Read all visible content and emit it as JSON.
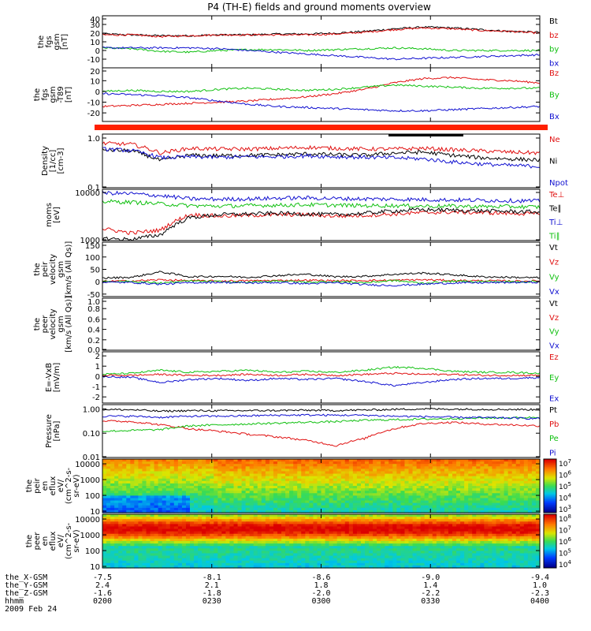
{
  "title": "P4 (TH-E) fields and ground moments overview",
  "colors": {
    "black": "#000000",
    "red": "#e01010",
    "green": "#10c010",
    "blue": "#1010d0",
    "flag_red": "#ff2000"
  },
  "time_axis": {
    "ticks": [
      "0200",
      "0230",
      "0300",
      "0330",
      "0400"
    ],
    "label_rows": [
      {
        "name": "the_X-GSM",
        "values": [
          "-7.5",
          "-8.1",
          "-8.6",
          "-9.0",
          "-9.4"
        ]
      },
      {
        "name": "the_Y-GSM",
        "values": [
          "2.4",
          "2.1",
          "1.8",
          "1.4",
          "1.0"
        ]
      },
      {
        "name": "the_Z-GSM",
        "values": [
          "-1.6",
          "-1.8",
          "-2.0",
          "-2.2",
          "-2.3"
        ]
      },
      {
        "name": "hhmm",
        "values": [
          "0200",
          "0230",
          "0300",
          "0330",
          "0400"
        ]
      }
    ],
    "date": "2009 Feb 24"
  },
  "chart_data": [
    {
      "type": "line",
      "id": "p1",
      "ylabel": [
        "the",
        "fgs",
        "gsm",
        "[nT]"
      ],
      "ylim": [
        -20,
        40
      ],
      "y_ticks": [
        "40",
        "30",
        "20",
        "10",
        "0",
        "-10"
      ],
      "series": [
        {
          "name": "Bt",
          "color": "#000000",
          "values": [
            19,
            18,
            17,
            17,
            18,
            18,
            19,
            19,
            20,
            22,
            25,
            27,
            26,
            24,
            22,
            21
          ]
        },
        {
          "name": "bz",
          "color": "#e01010",
          "values": [
            18,
            18,
            16,
            17,
            18,
            18,
            18,
            18,
            19,
            21,
            24,
            26,
            25,
            23,
            22,
            20
          ]
        },
        {
          "name": "by",
          "color": "#10c010",
          "values": [
            3,
            2,
            -1,
            -2,
            0,
            1,
            1,
            0,
            1,
            2,
            3,
            2,
            0,
            0,
            0,
            0
          ]
        },
        {
          "name": "bx",
          "color": "#1010d0",
          "values": [
            3,
            3,
            3,
            3,
            2,
            0,
            -2,
            -4,
            -6,
            -8,
            -10,
            -9,
            -8,
            -7,
            -6,
            -5
          ]
        }
      ]
    },
    {
      "type": "line",
      "id": "p2",
      "ylabel": [
        "the",
        "fgs",
        "gsm",
        "-T89",
        "[nT]"
      ],
      "ylim": [
        -28,
        22
      ],
      "y_ticks": [
        "20",
        "10",
        "0",
        "-10",
        "-20"
      ],
      "series": [
        {
          "name": "Bz",
          "color": "#e01010",
          "values": [
            -14,
            -13,
            -12,
            -11,
            -10,
            -9,
            -7,
            -5,
            -2,
            2,
            8,
            12,
            13,
            11,
            10,
            8
          ]
        },
        {
          "name": "By",
          "color": "#10c010",
          "values": [
            0,
            1,
            0,
            0,
            2,
            3,
            2,
            1,
            2,
            4,
            6,
            5,
            4,
            3,
            3,
            3
          ]
        },
        {
          "name": "Bx",
          "color": "#1010d0",
          "values": [
            -2,
            -3,
            -4,
            -6,
            -9,
            -12,
            -14,
            -15,
            -16,
            -17,
            -18,
            -18,
            -17,
            -16,
            -15,
            -14
          ]
        }
      ]
    },
    {
      "type": "line",
      "id": "p3",
      "ylabel": [
        "Density",
        "[1/cc]",
        "[cm-3]"
      ],
      "yscale": "log",
      "ylim": [
        0.1,
        1.2
      ],
      "y_ticks": [
        "1.0",
        "0.1"
      ],
      "series": [
        {
          "name": "Ne",
          "color": "#e01010",
          "values": [
            0.78,
            0.75,
            0.5,
            0.62,
            0.6,
            0.6,
            0.62,
            0.65,
            0.62,
            0.6,
            0.6,
            0.62,
            0.58,
            0.55,
            0.52,
            0.5
          ]
        },
        {
          "name": "Ni",
          "color": "#000000",
          "values": [
            0.58,
            0.55,
            0.35,
            0.45,
            0.44,
            0.45,
            0.46,
            0.48,
            0.46,
            0.45,
            0.5,
            0.52,
            0.45,
            0.4,
            0.38,
            0.36
          ]
        },
        {
          "name": "Npot",
          "color": "#1010d0",
          "values": [
            0.6,
            0.56,
            0.4,
            0.42,
            0.41,
            0.42,
            0.42,
            0.44,
            0.42,
            0.41,
            0.4,
            0.38,
            0.33,
            0.3,
            0.28,
            0.27
          ]
        }
      ]
    },
    {
      "type": "line",
      "id": "p4",
      "ylabel": [
        "moms",
        "[eV]"
      ],
      "yscale": "log",
      "ylim": [
        1000,
        10000
      ],
      "y_ticks": [
        "10000",
        "1000"
      ],
      "series": [
        {
          "name": "Te⊥",
          "color": "#e01010",
          "values": [
            1700,
            1400,
            1600,
            3200,
            3000,
            3100,
            3200,
            3200,
            3000,
            3100,
            3300,
            3500,
            3600,
            3500,
            3400,
            3300
          ]
        },
        {
          "name": "Te∥",
          "color": "#000000",
          "values": [
            1100,
            1050,
            1300,
            2800,
            3200,
            3300,
            3400,
            3300,
            3200,
            3400,
            3800,
            4000,
            3900,
            3800,
            3700,
            3600
          ]
        },
        {
          "name": "Ti⊥",
          "color": "#1010d0",
          "values": [
            8500,
            8200,
            7500,
            6500,
            6400,
            6500,
            6700,
            6800,
            6600,
            6500,
            6400,
            6300,
            6200,
            6100,
            6000,
            5900
          ]
        },
        {
          "name": "Ti∥",
          "color": "#10c010",
          "values": [
            5800,
            5600,
            5200,
            4800,
            4700,
            4800,
            4900,
            5000,
            4900,
            4800,
            4800,
            4700,
            4700,
            4600,
            4600,
            4500
          ]
        }
      ]
    },
    {
      "type": "line",
      "id": "p5",
      "ylabel": [
        "the",
        "peir",
        "velocity",
        "gsm",
        "[km/s (All Qs)]"
      ],
      "ylim": [
        -60,
        160
      ],
      "y_ticks": [
        "150",
        "100",
        "50",
        "0",
        "-50"
      ],
      "series": [
        {
          "name": "Vt",
          "color": "#000000",
          "values": [
            15,
            18,
            40,
            20,
            22,
            18,
            25,
            30,
            20,
            22,
            30,
            35,
            28,
            20,
            18,
            16
          ]
        },
        {
          "name": "Vz",
          "color": "#e01010",
          "values": [
            2,
            3,
            8,
            4,
            3,
            4,
            5,
            6,
            4,
            5,
            6,
            8,
            5,
            4,
            3,
            3
          ]
        },
        {
          "name": "Vy",
          "color": "#10c010",
          "values": [
            2,
            1,
            -5,
            3,
            0,
            -3,
            4,
            -2,
            1,
            -4,
            5,
            -6,
            2,
            1,
            0,
            1
          ]
        },
        {
          "name": "Vx",
          "color": "#1010d0",
          "values": [
            -2,
            -3,
            -10,
            -4,
            -2,
            -5,
            -3,
            -8,
            -4,
            -12,
            -15,
            -10,
            -5,
            -4,
            -3,
            -2
          ]
        }
      ]
    },
    {
      "type": "line",
      "id": "p6",
      "ylabel": [
        "the",
        "peer",
        "velocity",
        "gsm",
        "[km/s (All Qs)]"
      ],
      "ylim": [
        0,
        1
      ],
      "y_ticks": [
        "1.0",
        "0.8",
        "0.6",
        "0.4",
        "0.2",
        "0.0"
      ],
      "series": [
        {
          "name": "Vt",
          "color": "#000000",
          "values": []
        },
        {
          "name": "Vz",
          "color": "#e01010",
          "values": []
        },
        {
          "name": "Vy",
          "color": "#10c010",
          "values": []
        },
        {
          "name": "Vx",
          "color": "#1010d0",
          "values": []
        }
      ]
    },
    {
      "type": "line",
      "id": "p7",
      "ylabel": [
        "E=-VxB",
        "[mV/m]"
      ],
      "ylim": [
        -2.6,
        2.4
      ],
      "y_ticks": [
        "2",
        "1",
        "0",
        "-1",
        "-2"
      ],
      "series": [
        {
          "name": "Ez",
          "color": "#e01010",
          "values": [
            0.1,
            0.1,
            0.2,
            0.1,
            0.1,
            0.2,
            0.1,
            0.2,
            0.1,
            0.2,
            0.3,
            0.2,
            0.2,
            0.1,
            0.1,
            0.1
          ]
        },
        {
          "name": "Ey",
          "color": "#10c010",
          "values": [
            0.2,
            0.3,
            0.6,
            0.4,
            0.5,
            0.6,
            0.4,
            0.5,
            0.4,
            0.6,
            0.9,
            0.8,
            0.5,
            0.4,
            0.4,
            0.3
          ]
        },
        {
          "name": "Ex",
          "color": "#1010d0",
          "values": [
            0.0,
            -0.1,
            -0.6,
            -0.3,
            -0.2,
            -0.4,
            -0.2,
            -0.3,
            -0.2,
            -0.5,
            -0.9,
            -0.6,
            -0.3,
            -0.2,
            -0.2,
            -0.1
          ]
        }
      ]
    },
    {
      "type": "line",
      "id": "p8",
      "ylabel": [
        "Pressure",
        "[nPa]"
      ],
      "yscale": "log",
      "ylim": [
        0.01,
        1.5
      ],
      "y_ticks": [
        "1.00",
        "0.10",
        "0.01"
      ],
      "series": [
        {
          "name": "Pt",
          "color": "#000000",
          "values": [
            0.95,
            0.92,
            0.8,
            0.85,
            0.84,
            0.85,
            0.86,
            0.88,
            0.86,
            0.9,
            0.95,
            1.0,
            0.98,
            0.96,
            0.95,
            0.93
          ]
        },
        {
          "name": "Pb",
          "color": "#e01010",
          "values": [
            0.32,
            0.3,
            0.22,
            0.15,
            0.12,
            0.09,
            0.07,
            0.05,
            0.03,
            0.06,
            0.15,
            0.25,
            0.28,
            0.24,
            0.22,
            0.2
          ]
        },
        {
          "name": "Pe",
          "color": "#10c010",
          "values": [
            0.12,
            0.13,
            0.14,
            0.2,
            0.22,
            0.24,
            0.26,
            0.28,
            0.3,
            0.34,
            0.36,
            0.38,
            0.4,
            0.42,
            0.43,
            0.45
          ]
        },
        {
          "name": "Pi",
          "color": "#1010d0",
          "values": [
            0.5,
            0.5,
            0.45,
            0.5,
            0.5,
            0.52,
            0.55,
            0.56,
            0.55,
            0.55,
            0.5,
            0.48,
            0.45,
            0.44,
            0.42,
            0.4
          ]
        }
      ]
    },
    {
      "type": "heatmap",
      "id": "p9",
      "ylabel": [
        "the",
        "peir",
        "en",
        "eflux",
        "eV/",
        "(cm^2-s-",
        "sr-eV)"
      ],
      "yscale": "log",
      "ylim": [
        8,
        20000
      ],
      "y_ticks": [
        "10000",
        "1000",
        "100",
        "10"
      ],
      "colorbar": {
        "labels": [
          "10^7",
          "10^6",
          "10^5",
          "10^4",
          "10^3"
        ]
      }
    },
    {
      "type": "heatmap",
      "id": "p10",
      "ylabel": [
        "the",
        "peer",
        "en",
        "eflux",
        "eV/",
        "(cm^2-s-",
        "sr-eV)"
      ],
      "yscale": "log",
      "ylim": [
        8,
        20000
      ],
      "y_ticks": [
        "10000",
        "1000",
        "100",
        "10"
      ],
      "colorbar": {
        "labels": [
          "10^8",
          "10^7",
          "10^6",
          "10^5",
          "10^4"
        ]
      }
    }
  ]
}
